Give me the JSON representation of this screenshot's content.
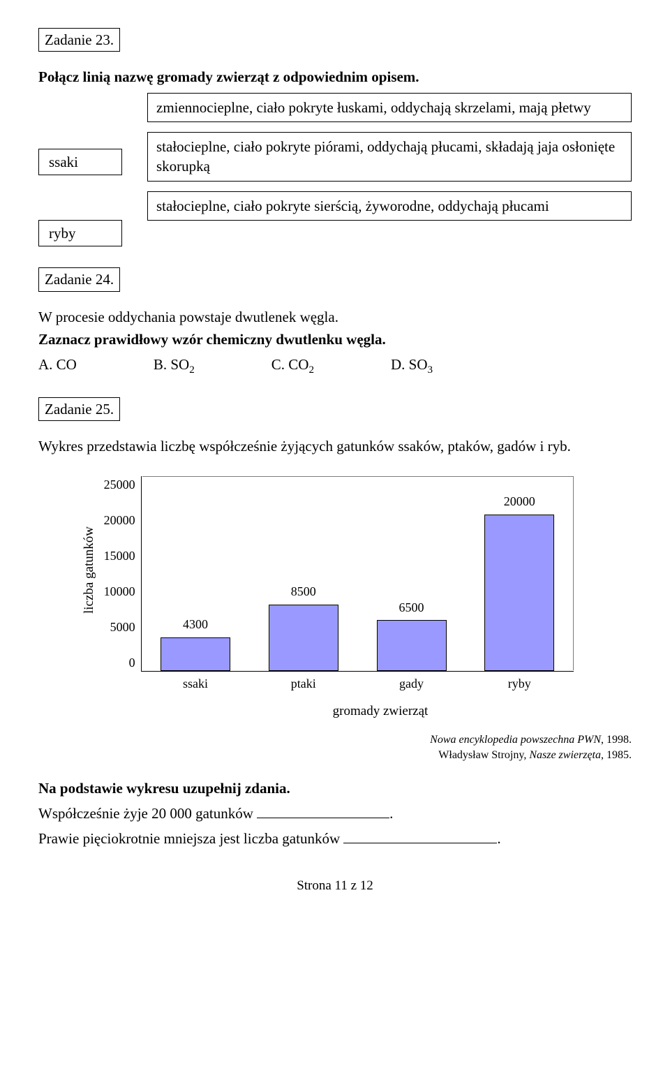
{
  "task23": {
    "label": "Zadanie 23.",
    "prompt": "Połącz linią nazwę gromady zwierząt z odpowiednim opisem.",
    "left_items": [
      "ssaki",
      "ryby"
    ],
    "right_items": [
      "zmiennocieplne, ciało pokryte łuskami, oddychają skrzelami, mają płetwy",
      "stałocieplne, ciało pokryte piórami, oddychają płucami, składają jaja osłonięte skorupką",
      "stałocieplne, ciało pokryte sierścią, żyworodne, oddychają płucami"
    ]
  },
  "task24": {
    "label": "Zadanie 24.",
    "line1": "W procesie oddychania powstaje dwutlenek węgla.",
    "line2": "Zaznacz prawidłowy wzór chemiczny dwutlenku węgla.",
    "options": {
      "a": "A. CO",
      "b_pre": "B. SO",
      "b_sub": "2",
      "c_pre": "C. CO",
      "c_sub": "2",
      "d_pre": "D. SO",
      "d_sub": "3"
    }
  },
  "task25": {
    "label": "Zadanie 25.",
    "intro": "Wykres przedstawia liczbę współcześnie żyjących gatunków ssaków, ptaków, gadów i ryb.",
    "chart": {
      "type": "bar",
      "ylabel": "liczba gatunków",
      "xlabel": "gromady zwierząt",
      "categories": [
        "ssaki",
        "ptaki",
        "gady",
        "ryby"
      ],
      "values": [
        4300,
        8500,
        6500,
        20000
      ],
      "value_labels": [
        "4300",
        "8500",
        "6500",
        "20000"
      ],
      "ylim_max": 25000,
      "ytick_labels": [
        "25000",
        "20000",
        "15000",
        "10000",
        "5000",
        "0"
      ],
      "bar_fill": "#9999ff",
      "bar_border": "#000000",
      "plot_border": "#7a7a7a",
      "background": "#ffffff",
      "label_fontsize": 18
    },
    "source1_plain": "Nowa encyklopedia powszechna PWN",
    "source1_tail": ", 1998.",
    "source2_pre": "Władysław Strojny, ",
    "source2_italic": "Nasze zwierzęta",
    "source2_tail": ", 1985.",
    "instruction": "Na podstawie wykresu uzupełnij zdania.",
    "sentence1": "Współcześnie żyje 20 000 gatunków ",
    "sentence2": "Prawie pięciokrotnie mniejsza jest liczba gatunków ",
    "period": "."
  },
  "footer": "Strona 11 z 12"
}
